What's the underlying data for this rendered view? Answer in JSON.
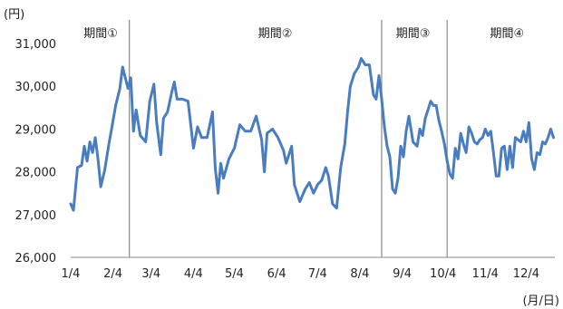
{
  "chart_data": {
    "type": "line",
    "title": "",
    "ylabel": "(円)",
    "xlabel": "(月/日)",
    "ylim": [
      26000,
      31000
    ],
    "y_ticks": [
      26000,
      27000,
      28000,
      29000,
      30000,
      31000
    ],
    "y_tick_labels": [
      "26,000",
      "27,000",
      "28,000",
      "29,000",
      "30,000",
      "31,000"
    ],
    "xlim": [
      0,
      355
    ],
    "x_ticks": [
      0,
      31,
      59,
      90,
      120,
      151,
      181,
      212,
      243,
      273,
      304,
      334
    ],
    "x_tick_labels": [
      "1/4",
      "2/4",
      "3/4",
      "4/4",
      "5/4",
      "6/4",
      "7/4",
      "8/4",
      "9/4",
      "10/4",
      "11/4",
      "12/4"
    ],
    "grid": false,
    "line_color": "#4a7dbf",
    "period_dividers": [
      43,
      228,
      276
    ],
    "periods": [
      {
        "label": "期間①",
        "x": 22
      },
      {
        "label": "期間②",
        "x": 150
      },
      {
        "label": "期間③",
        "x": 251
      },
      {
        "label": "期間④",
        "x": 320
      }
    ],
    "series": [
      {
        "values": [
          [
            0,
            27250
          ],
          [
            2,
            27100
          ],
          [
            5,
            28100
          ],
          [
            8,
            28150
          ],
          [
            10,
            28600
          ],
          [
            12,
            28250
          ],
          [
            14,
            28700
          ],
          [
            16,
            28450
          ],
          [
            18,
            28800
          ],
          [
            20,
            28300
          ],
          [
            22,
            27650
          ],
          [
            25,
            28050
          ],
          [
            28,
            28650
          ],
          [
            30,
            29000
          ],
          [
            33,
            29550
          ],
          [
            36,
            29950
          ],
          [
            38,
            30450
          ],
          [
            40,
            30200
          ],
          [
            42,
            29950
          ],
          [
            44,
            30200
          ],
          [
            46,
            28950
          ],
          [
            48,
            29450
          ],
          [
            51,
            28850
          ],
          [
            55,
            28700
          ],
          [
            58,
            29650
          ],
          [
            61,
            30050
          ],
          [
            63,
            29150
          ],
          [
            66,
            28400
          ],
          [
            68,
            29250
          ],
          [
            71,
            29400
          ],
          [
            74,
            29850
          ],
          [
            76,
            30100
          ],
          [
            78,
            29700
          ],
          [
            82,
            29700
          ],
          [
            86,
            29650
          ],
          [
            90,
            28550
          ],
          [
            93,
            29050
          ],
          [
            96,
            28800
          ],
          [
            100,
            28800
          ],
          [
            104,
            29400
          ],
          [
            106,
            28100
          ],
          [
            108,
            27500
          ],
          [
            110,
            28200
          ],
          [
            112,
            27850
          ],
          [
            116,
            28300
          ],
          [
            120,
            28550
          ],
          [
            124,
            29100
          ],
          [
            128,
            28950
          ],
          [
            132,
            28950
          ],
          [
            136,
            29300
          ],
          [
            140,
            28750
          ],
          [
            142,
            28000
          ],
          [
            144,
            28900
          ],
          [
            148,
            29000
          ],
          [
            152,
            28800
          ],
          [
            156,
            28500
          ],
          [
            158,
            28200
          ],
          [
            162,
            28600
          ],
          [
            164,
            27700
          ],
          [
            168,
            27300
          ],
          [
            172,
            27600
          ],
          [
            175,
            27750
          ],
          [
            178,
            27500
          ],
          [
            181,
            27700
          ],
          [
            184,
            27800
          ],
          [
            187,
            28100
          ],
          [
            189,
            27900
          ],
          [
            192,
            27250
          ],
          [
            195,
            27150
          ],
          [
            198,
            28100
          ],
          [
            201,
            28650
          ],
          [
            203,
            29400
          ],
          [
            205,
            30000
          ],
          [
            208,
            30300
          ],
          [
            211,
            30450
          ],
          [
            213,
            30650
          ],
          [
            216,
            30500
          ],
          [
            219,
            30500
          ],
          [
            222,
            29800
          ],
          [
            224,
            29700
          ],
          [
            226,
            30250
          ],
          [
            228,
            29700
          ],
          [
            230,
            29050
          ],
          [
            232,
            28600
          ],
          [
            234,
            28350
          ],
          [
            236,
            27600
          ],
          [
            238,
            27500
          ],
          [
            240,
            27850
          ],
          [
            242,
            28600
          ],
          [
            244,
            28350
          ],
          [
            246,
            28950
          ],
          [
            248,
            29300
          ],
          [
            251,
            28700
          ],
          [
            254,
            28600
          ],
          [
            256,
            29000
          ],
          [
            258,
            28850
          ],
          [
            260,
            29250
          ],
          [
            262,
            29450
          ],
          [
            264,
            29650
          ],
          [
            266,
            29550
          ],
          [
            268,
            29550
          ],
          [
            270,
            29200
          ],
          [
            272,
            28950
          ],
          [
            274,
            28650
          ],
          [
            276,
            28250
          ],
          [
            278,
            27950
          ],
          [
            280,
            27850
          ],
          [
            282,
            28550
          ],
          [
            284,
            28300
          ],
          [
            286,
            28900
          ],
          [
            288,
            28650
          ],
          [
            290,
            28450
          ],
          [
            292,
            29050
          ],
          [
            294,
            28900
          ],
          [
            296,
            28700
          ],
          [
            298,
            28650
          ],
          [
            300,
            28750
          ],
          [
            302,
            28800
          ],
          [
            304,
            29000
          ],
          [
            306,
            28850
          ],
          [
            308,
            28950
          ],
          [
            310,
            28450
          ],
          [
            312,
            27900
          ],
          [
            314,
            27900
          ],
          [
            316,
            28550
          ],
          [
            318,
            28600
          ],
          [
            320,
            28050
          ],
          [
            322,
            28600
          ],
          [
            324,
            28100
          ],
          [
            326,
            28800
          ],
          [
            328,
            28750
          ],
          [
            330,
            28700
          ],
          [
            332,
            28950
          ],
          [
            334,
            28700
          ],
          [
            336,
            29150
          ],
          [
            338,
            28300
          ],
          [
            340,
            28050
          ],
          [
            342,
            28450
          ],
          [
            344,
            28400
          ],
          [
            346,
            28700
          ],
          [
            348,
            28650
          ],
          [
            350,
            28800
          ],
          [
            352,
            29000
          ],
          [
            354,
            28800
          ]
        ]
      }
    ]
  }
}
